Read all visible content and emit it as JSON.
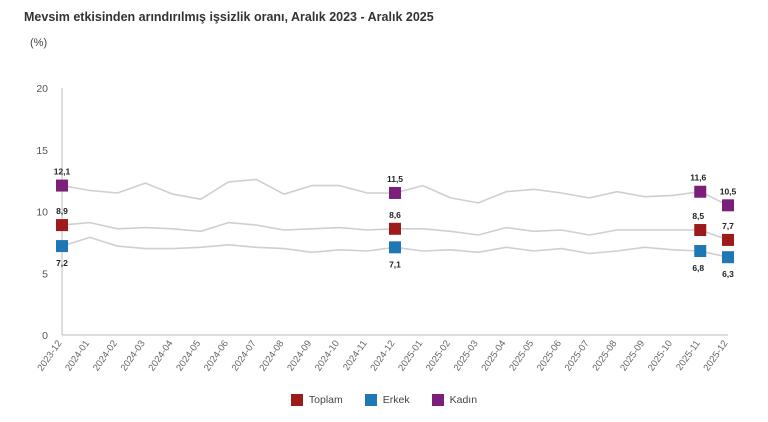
{
  "title": "Mevsim etkisinden arındırılmış işsizlik oranı, Aralık 2023 - Aralık 2025",
  "unit_label": "(%)",
  "colors": {
    "Toplam": "#9e1b1b",
    "Erkek": "#1f78b4",
    "Kadın": "#7b1f7a"
  },
  "chart_data": {
    "type": "line",
    "x": [
      "2023-12",
      "2024-01",
      "2024-02",
      "2024-03",
      "2024-04",
      "2024-05",
      "2024-06",
      "2024-07",
      "2024-08",
      "2024-09",
      "2024-10",
      "2024-11",
      "2024-12",
      "2025-01",
      "2025-02",
      "2025-03",
      "2025-04",
      "2025-05",
      "2025-06",
      "2025-07",
      "2025-08",
      "2025-09",
      "2025-10",
      "2025-11",
      "2025-12"
    ],
    "ylim": [
      0,
      20
    ],
    "yticks": [
      0,
      5,
      10,
      15,
      20
    ],
    "grid": false,
    "legend_position": "bottom",
    "series": [
      {
        "name": "Toplam",
        "values": [
          8.9,
          9.1,
          8.6,
          8.7,
          8.6,
          8.4,
          9.1,
          8.9,
          8.5,
          8.6,
          8.7,
          8.5,
          8.6,
          8.6,
          8.4,
          8.1,
          8.7,
          8.4,
          8.5,
          8.1,
          8.5,
          8.5,
          8.5,
          8.5,
          7.7
        ],
        "labels": {
          "0": "8,9",
          "12": "8,6",
          "23": "8,5",
          "24": "7,7"
        }
      },
      {
        "name": "Erkek",
        "values": [
          7.2,
          7.9,
          7.2,
          7.0,
          7.0,
          7.1,
          7.3,
          7.1,
          7.0,
          6.7,
          6.9,
          6.8,
          7.1,
          6.8,
          6.9,
          6.7,
          7.1,
          6.8,
          7.0,
          6.6,
          6.8,
          7.1,
          6.9,
          6.8,
          6.3
        ],
        "labels": {
          "0": "7,2",
          "12": "7,1",
          "23": "6,8",
          "24": "6,3"
        }
      },
      {
        "name": "Kadın",
        "values": [
          12.1,
          11.7,
          11.5,
          12.3,
          11.4,
          11.0,
          12.4,
          12.6,
          11.4,
          12.1,
          12.1,
          11.5,
          11.5,
          12.1,
          11.1,
          10.7,
          11.6,
          11.8,
          11.5,
          11.1,
          11.6,
          11.2,
          11.3,
          11.6,
          10.5
        ],
        "labels": {
          "0": "12,1",
          "12": "11,5",
          "23": "11,6",
          "24": "10,5"
        }
      }
    ]
  }
}
